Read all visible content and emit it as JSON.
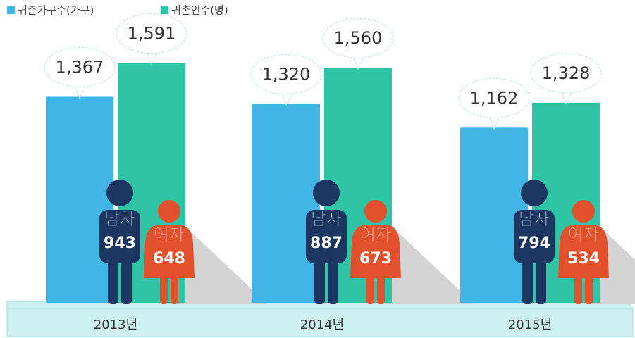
{
  "chart_data": {
    "type": "bar",
    "categories": [
      "2013년",
      "2014년",
      "2015년"
    ],
    "series": [
      {
        "name": "귀촌가구수(가구)",
        "color": "#41b6e6",
        "values": [
          1367,
          1320,
          1162
        ],
        "value_labels": [
          "1,367",
          "1,320",
          "1,162"
        ]
      },
      {
        "name": "귀촌인수(명)",
        "color": "#2ec4a5",
        "values": [
          1591,
          1560,
          1328
        ],
        "value_labels": [
          "1,591",
          "1,560",
          "1,328"
        ]
      }
    ],
    "breakdown": [
      {
        "name": "남자",
        "color": "#1b3660",
        "values": [
          943,
          887,
          794
        ]
      },
      {
        "name": "여자",
        "color": "#e2512b",
        "values": [
          648,
          673,
          534
        ]
      }
    ],
    "ylim": [
      0,
      2000
    ]
  }
}
